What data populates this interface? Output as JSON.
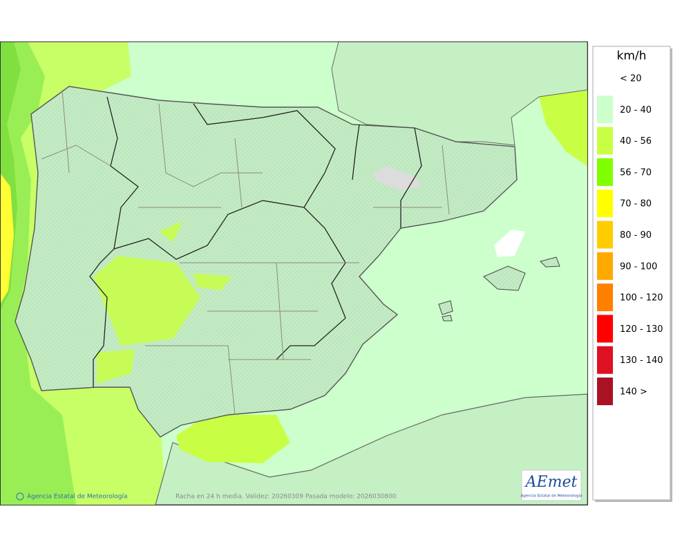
{
  "legend": {
    "title": "km/h",
    "items": [
      {
        "label": "< 20"
      },
      {
        "label": "20 - 40",
        "color": "#ccffcc"
      },
      {
        "label": "40 - 56",
        "color": "#c8ff44"
      },
      {
        "label": "56 - 70",
        "color": "#80ff00"
      },
      {
        "label": "70 - 80",
        "color": "#ffff00"
      },
      {
        "label": "80 - 90",
        "color": "#ffcc00"
      },
      {
        "label": "90 - 100",
        "color": "#ffaa00"
      },
      {
        "label": "100 - 120",
        "color": "#ff8000"
      },
      {
        "label": "120 - 130",
        "color": "#ff0000"
      },
      {
        "label": "130 - 140",
        "color": "#dd1122"
      },
      {
        "label": "140 >",
        "color": "#aa1122"
      }
    ]
  },
  "footer": {
    "credit": "Agencia Estatal de Meteorología",
    "caption": "Racha en 24 h media. Validez: 20260309 Pasada modelo: 2026030800"
  },
  "logo": {
    "name": "AEmet",
    "subtitle": "Agencia Estatal de Meteorología"
  }
}
